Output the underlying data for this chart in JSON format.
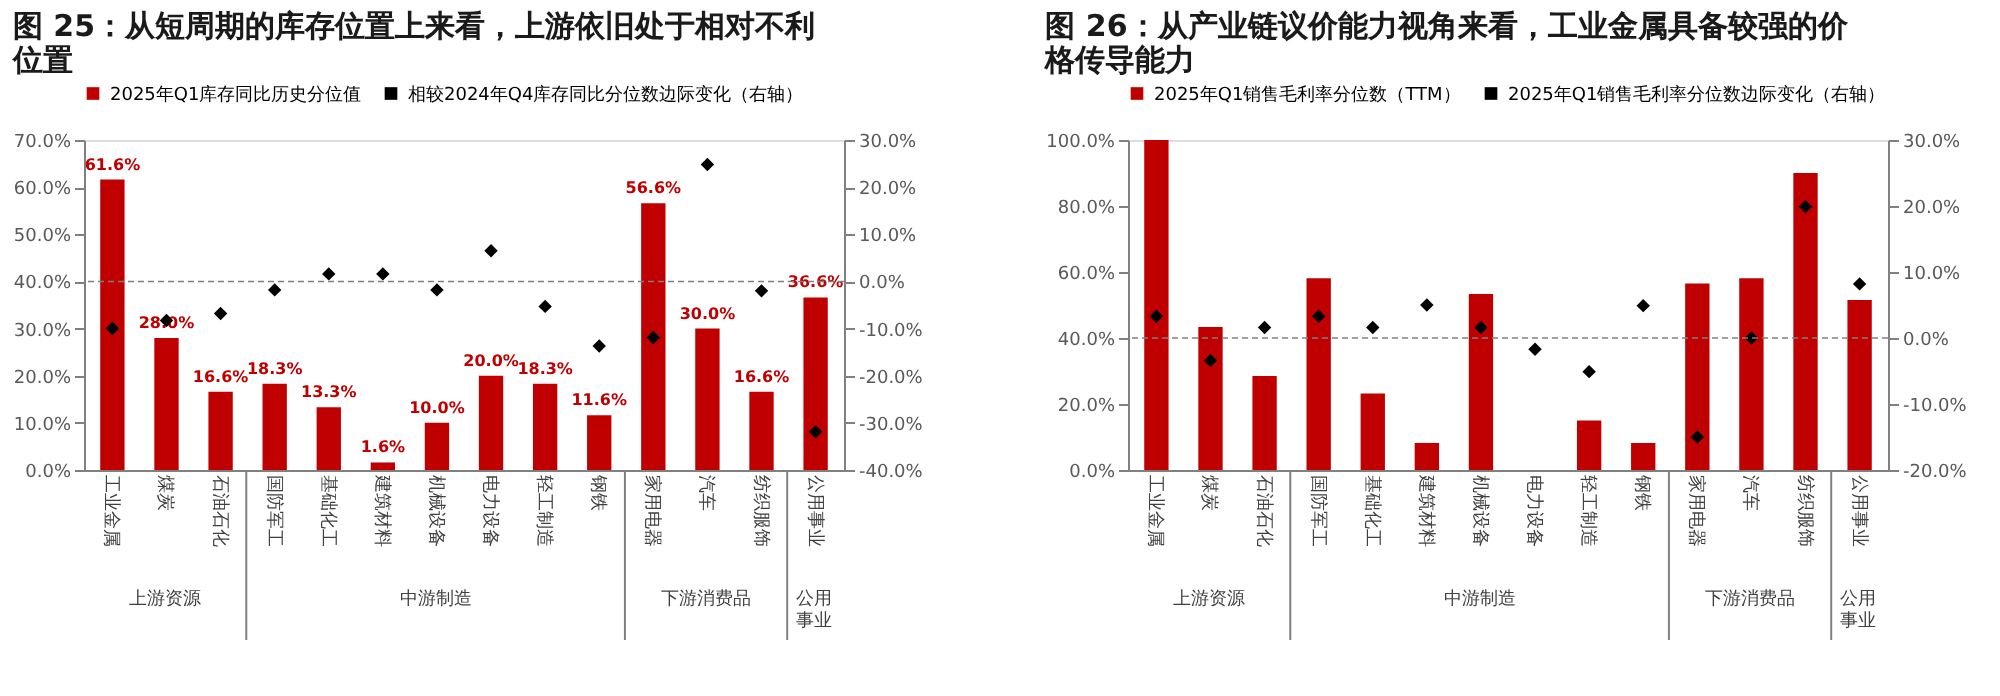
{
  "chart_data": [
    {
      "type": "bar",
      "title": "图 25：从短周期的库存位置上来看，上游依旧处于相对不利位置",
      "categories": [
        "工业金属",
        "煤炭",
        "石油石化",
        "国防军工",
        "基础化工",
        "建筑材料",
        "机械设备",
        "电力设备",
        "轻工制造",
        "钢铁",
        "家用电器",
        "汽车",
        "纺织服饰",
        "公用事业"
      ],
      "series": [
        {
          "name": "2025年Q1库存同比历史分位值",
          "color": "#c00000",
          "values": [
            61.6,
            28.0,
            16.6,
            18.3,
            13.3,
            1.6,
            10.0,
            20.0,
            18.3,
            11.6,
            56.6,
            30.0,
            16.6,
            36.6
          ],
          "value_labels": [
            "61.6%",
            "28.0%",
            "16.6%",
            "18.3%",
            "13.3%",
            "1.6%",
            "10.0%",
            "20.0%",
            "18.3%",
            "11.6%",
            "56.6%",
            "30.0%",
            "16.6%",
            "36.6%"
          ]
        },
        {
          "name": "相较2024年Q4库存同比分位数边际变化（右轴）",
          "type": "scatter",
          "axis": "y2",
          "color": "#000000",
          "values": [
            -10.0,
            -8.3,
            -6.8,
            -1.8,
            1.6,
            1.6,
            -1.8,
            6.5,
            -5.3,
            -13.7,
            -11.9,
            24.8,
            -2.0,
            -31.9
          ]
        }
      ],
      "ylim": [
        0,
        70
      ],
      "yticks": [
        {
          "value": 0,
          "label": "0.0%"
        },
        {
          "value": 10,
          "label": "10.0%"
        },
        {
          "value": 20,
          "label": "20.0%"
        },
        {
          "value": 30,
          "label": "30.0%"
        },
        {
          "value": 40,
          "label": "40.0%"
        },
        {
          "value": 50,
          "label": "50.0%"
        },
        {
          "value": 60,
          "label": "60.0%"
        },
        {
          "value": 70,
          "label": "70.0%"
        }
      ],
      "y2lim": [
        -40,
        30
      ],
      "y2ticks": [
        {
          "value": -40,
          "label": "-40.0%"
        },
        {
          "value": -30,
          "label": "-30.0%"
        },
        {
          "value": -20,
          "label": "-20.0%"
        },
        {
          "value": -10,
          "label": "-10.0%"
        },
        {
          "value": 0,
          "label": "0.0%"
        },
        {
          "value": 10,
          "label": "10.0%"
        },
        {
          "value": 20,
          "label": "20.0%"
        },
        {
          "value": 30,
          "label": "30.0%"
        }
      ],
      "ref_lines": [
        {
          "axis": "y2",
          "value": 0,
          "line_style": "dashed",
          "color": "#808080"
        }
      ],
      "marker": "diamond",
      "legend": "top",
      "grid": false,
      "annotations": [
        "上游资源",
        "中游制造",
        "下游消费品",
        "公用事业"
      ]
    },
    {
      "type": "bar",
      "title": "图 26：从产业链议价能力视角来看，工业金属具备较强的价格传导能力",
      "categories": [
        "工业金属",
        "煤炭",
        "石油石化",
        "国防军工",
        "基础化工",
        "建筑材料",
        "机械设备",
        "电力设备",
        "轻工制造",
        "钢铁",
        "家用电器",
        "汽车",
        "纺织服饰",
        "公用事业"
      ],
      "series": [
        {
          "name": "2025年Q1销售毛利率分位数（TTM）",
          "color": "#c00000",
          "values": [
            100.0,
            43.3,
            28.5,
            58.1,
            23.2,
            8.2,
            53.3,
            0.0,
            15.0,
            8.2,
            56.5,
            58.1,
            90.0,
            51.5
          ]
        },
        {
          "name": "2025年Q1销售毛利率分位数边际变化（右轴）",
          "type": "scatter",
          "axis": "y2",
          "color": "#000000",
          "values": [
            3.3,
            -3.4,
            1.6,
            3.3,
            1.6,
            5.0,
            1.6,
            -1.7,
            -5.1,
            4.9,
            -15.0,
            0.0,
            19.9,
            8.2
          ]
        }
      ],
      "ylim": [
        0,
        100
      ],
      "yticks": [
        {
          "value": 0,
          "label": "0.0%"
        },
        {
          "value": 20,
          "label": "20.0%"
        },
        {
          "value": 40,
          "label": "40.0%"
        },
        {
          "value": 60,
          "label": "60.0%"
        },
        {
          "value": 80,
          "label": "80.0%"
        },
        {
          "value": 100,
          "label": "100.0%"
        }
      ],
      "y2lim": [
        -20,
        30
      ],
      "y2ticks": [
        {
          "value": -20,
          "label": "-20.0%"
        },
        {
          "value": -10,
          "label": "-10.0%"
        },
        {
          "value": 0,
          "label": "0.0%"
        },
        {
          "value": 10,
          "label": "10.0%"
        },
        {
          "value": 20,
          "label": "20.0%"
        },
        {
          "value": 30,
          "label": "30.0%"
        }
      ],
      "ref_lines": [
        {
          "axis": "y2",
          "value": 0,
          "line_style": "dashed",
          "color": "#808080"
        }
      ],
      "marker": "diamond",
      "legend": "top",
      "grid": false,
      "annotations": [
        "上游资源",
        "中游制造",
        "下游消费品",
        "公用事业"
      ]
    }
  ]
}
